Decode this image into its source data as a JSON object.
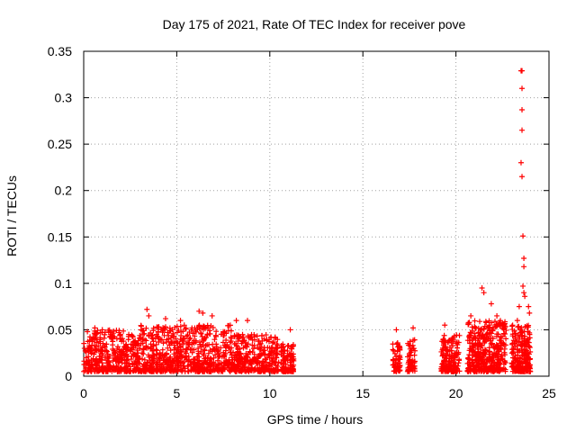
{
  "chart_data": {
    "type": "scatter",
    "title": "Day 175 of 2021, Rate Of TEC Index for receiver pove",
    "xlabel": "GPS time / hours",
    "ylabel": "ROTI / TECUs",
    "xlim": [
      0,
      25
    ],
    "ylim": [
      0,
      0.35
    ],
    "xticks": [
      "0",
      "5",
      "10",
      "15",
      "20",
      "25"
    ],
    "yticks": [
      "0",
      "0.05",
      "0.1",
      "0.15",
      "0.2",
      "0.25",
      "0.3",
      "0.35"
    ],
    "grid": true,
    "marker": "plus",
    "marker_color": "#ff0000",
    "series": [
      {
        "clusters": [
          {
            "x_start": 0.0,
            "x_end": 3.0,
            "y_min": 0.005,
            "y_max": 0.05,
            "count": 400
          },
          {
            "x_start": 3.0,
            "x_end": 8.0,
            "y_min": 0.005,
            "y_max": 0.055,
            "count": 650
          },
          {
            "x_start": 8.0,
            "x_end": 10.5,
            "y_min": 0.005,
            "y_max": 0.045,
            "count": 320
          },
          {
            "x_start": 10.6,
            "x_end": 11.3,
            "y_min": 0.005,
            "y_max": 0.035,
            "count": 110
          },
          {
            "x_start": 16.6,
            "x_end": 17.0,
            "y_min": 0.005,
            "y_max": 0.04,
            "count": 60
          },
          {
            "x_start": 17.4,
            "x_end": 17.8,
            "y_min": 0.005,
            "y_max": 0.04,
            "count": 60
          },
          {
            "x_start": 19.2,
            "x_end": 20.2,
            "y_min": 0.005,
            "y_max": 0.045,
            "count": 170
          },
          {
            "x_start": 20.6,
            "x_end": 22.7,
            "y_min": 0.005,
            "y_max": 0.06,
            "count": 420
          },
          {
            "x_start": 23.0,
            "x_end": 24.0,
            "y_min": 0.005,
            "y_max": 0.055,
            "count": 220
          }
        ],
        "points": [
          {
            "x": 0.2,
            "y": 0.048
          },
          {
            "x": 0.6,
            "y": 0.052
          },
          {
            "x": 1.0,
            "y": 0.05
          },
          {
            "x": 3.4,
            "y": 0.072
          },
          {
            "x": 3.5,
            "y": 0.065
          },
          {
            "x": 4.4,
            "y": 0.062
          },
          {
            "x": 5.2,
            "y": 0.06
          },
          {
            "x": 6.2,
            "y": 0.07
          },
          {
            "x": 6.4,
            "y": 0.068
          },
          {
            "x": 6.9,
            "y": 0.065
          },
          {
            "x": 8.2,
            "y": 0.06
          },
          {
            "x": 8.8,
            "y": 0.06
          },
          {
            "x": 11.1,
            "y": 0.05
          },
          {
            "x": 16.8,
            "y": 0.05
          },
          {
            "x": 17.7,
            "y": 0.052
          },
          {
            "x": 19.4,
            "y": 0.055
          },
          {
            "x": 20.8,
            "y": 0.065
          },
          {
            "x": 21.4,
            "y": 0.095
          },
          {
            "x": 21.5,
            "y": 0.09
          },
          {
            "x": 21.9,
            "y": 0.078
          },
          {
            "x": 22.2,
            "y": 0.065
          },
          {
            "x": 23.3,
            "y": 0.06
          },
          {
            "x": 23.4,
            "y": 0.075
          },
          {
            "x": 23.5,
            "y": 0.329
          },
          {
            "x": 23.55,
            "y": 0.329
          },
          {
            "x": 23.55,
            "y": 0.31
          },
          {
            "x": 23.55,
            "y": 0.287
          },
          {
            "x": 23.55,
            "y": 0.265
          },
          {
            "x": 23.5,
            "y": 0.23
          },
          {
            "x": 23.55,
            "y": 0.215
          },
          {
            "x": 23.6,
            "y": 0.151
          },
          {
            "x": 23.65,
            "y": 0.127
          },
          {
            "x": 23.65,
            "y": 0.118
          },
          {
            "x": 23.6,
            "y": 0.097
          },
          {
            "x": 23.65,
            "y": 0.09
          },
          {
            "x": 23.7,
            "y": 0.086
          },
          {
            "x": 23.9,
            "y": 0.075
          },
          {
            "x": 23.95,
            "y": 0.068
          }
        ]
      }
    ]
  }
}
